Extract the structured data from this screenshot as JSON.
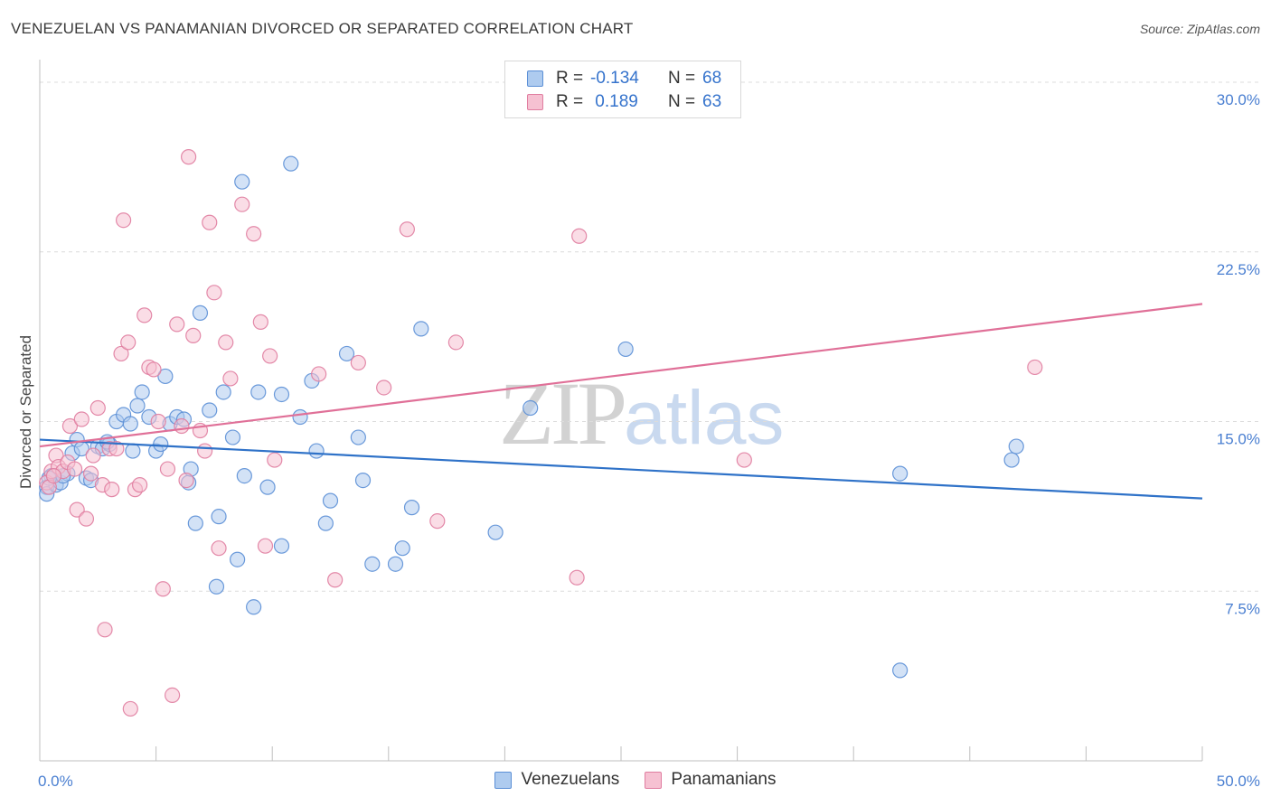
{
  "header": {
    "title": "VENEZUELAN VS PANAMANIAN DIVORCED OR SEPARATED CORRELATION CHART",
    "source": "Source: ZipAtlas.com"
  },
  "watermark": {
    "zip": "ZIP",
    "atlas": "atlas"
  },
  "legend": {
    "rows": [
      {
        "r_label": "R =",
        "r_value": "-0.134",
        "n_label": "N =",
        "n_value": "68",
        "color": "#5b8fd6",
        "fill": "#aecbef"
      },
      {
        "r_label": "R =",
        "r_value": " 0.189",
        "n_label": "N =",
        "n_value": "63",
        "color": "#e07da0",
        "fill": "#f6c1d2"
      }
    ]
  },
  "bottom_legend": {
    "items": [
      "Venezuelans",
      "Panamanians"
    ]
  },
  "colors": {
    "venezuelan_stroke": "#5b8fd6",
    "venezuelan_fill": "#aecbef",
    "venezuelan_line": "#2f72c8",
    "panamanian_stroke": "#e07da0",
    "panamanian_fill": "#f6c1d2",
    "panamanian_line": "#e07098",
    "tick_label": "#4a7fd1",
    "grid": "#dcdcdc"
  },
  "chart_data": {
    "type": "scatter",
    "title": "VENEZUELAN VS PANAMANIAN DIVORCED OR SEPARATED CORRELATION CHART",
    "xlabel": "",
    "ylabel": "Divorced or Separated",
    "xlim": [
      0,
      50
    ],
    "ylim": [
      0,
      31
    ],
    "x_tick_labels": [
      "0.0%",
      "50.0%"
    ],
    "y_ticks": [
      7.5,
      15.0,
      22.5,
      30.0
    ],
    "y_tick_labels": [
      "7.5%",
      "15.0%",
      "22.5%",
      "30.0%"
    ],
    "grid": true,
    "legend_position": "top-center",
    "series": [
      {
        "name": "Venezuelans",
        "r": -0.134,
        "n": 68,
        "trend": {
          "x": [
            0,
            50
          ],
          "y": [
            14.2,
            11.6
          ]
        },
        "points": [
          [
            0.3,
            12.1
          ],
          [
            0.3,
            11.8
          ],
          [
            0.5,
            12.6
          ],
          [
            0.7,
            12.2
          ],
          [
            0.9,
            12.3
          ],
          [
            1.2,
            12.7
          ],
          [
            1.4,
            13.6
          ],
          [
            1.6,
            14.2
          ],
          [
            1.8,
            13.8
          ],
          [
            2.0,
            12.5
          ],
          [
            2.2,
            12.4
          ],
          [
            2.5,
            13.9
          ],
          [
            2.7,
            13.8
          ],
          [
            3.0,
            14.0
          ],
          [
            3.3,
            15.0
          ],
          [
            3.6,
            15.3
          ],
          [
            3.9,
            14.9
          ],
          [
            4.0,
            13.7
          ],
          [
            4.2,
            15.7
          ],
          [
            4.4,
            16.3
          ],
          [
            4.7,
            15.2
          ],
          [
            5.0,
            13.7
          ],
          [
            5.2,
            14.0
          ],
          [
            5.4,
            17.0
          ],
          [
            5.6,
            14.9
          ],
          [
            5.9,
            15.2
          ],
          [
            6.2,
            15.1
          ],
          [
            6.4,
            12.3
          ],
          [
            6.5,
            12.9
          ],
          [
            6.7,
            10.5
          ],
          [
            6.9,
            19.8
          ],
          [
            7.3,
            15.5
          ],
          [
            7.6,
            7.7
          ],
          [
            7.7,
            10.8
          ],
          [
            7.9,
            16.3
          ],
          [
            8.3,
            14.3
          ],
          [
            8.5,
            8.9
          ],
          [
            8.7,
            25.6
          ],
          [
            8.8,
            12.6
          ],
          [
            9.2,
            6.8
          ],
          [
            9.4,
            16.3
          ],
          [
            9.8,
            12.1
          ],
          [
            10.4,
            16.2
          ],
          [
            10.4,
            9.5
          ],
          [
            10.8,
            26.4
          ],
          [
            11.2,
            15.2
          ],
          [
            11.7,
            16.8
          ],
          [
            11.9,
            13.7
          ],
          [
            12.3,
            10.5
          ],
          [
            12.5,
            11.5
          ],
          [
            13.2,
            18.0
          ],
          [
            13.7,
            14.3
          ],
          [
            13.9,
            12.4
          ],
          [
            14.3,
            8.7
          ],
          [
            15.3,
            8.7
          ],
          [
            15.6,
            9.4
          ],
          [
            16.0,
            11.2
          ],
          [
            16.4,
            19.1
          ],
          [
            19.6,
            10.1
          ],
          [
            21.1,
            15.6
          ],
          [
            25.2,
            18.2
          ],
          [
            37.0,
            12.7
          ],
          [
            37.0,
            4.0
          ],
          [
            41.8,
            13.3
          ],
          [
            42.0,
            13.9
          ],
          [
            0.4,
            12.5
          ],
          [
            1.0,
            12.6
          ],
          [
            2.9,
            14.1
          ]
        ]
      },
      {
        "name": "Panamanians",
        "r": 0.189,
        "n": 63,
        "trend": {
          "x": [
            0,
            50
          ],
          "y": [
            13.9,
            20.2
          ]
        },
        "points": [
          [
            0.3,
            12.3
          ],
          [
            0.5,
            12.8
          ],
          [
            0.7,
            13.5
          ],
          [
            0.8,
            13.0
          ],
          [
            1.0,
            12.8
          ],
          [
            1.3,
            14.8
          ],
          [
            1.6,
            11.1
          ],
          [
            1.8,
            15.1
          ],
          [
            2.0,
            10.7
          ],
          [
            2.3,
            13.5
          ],
          [
            2.5,
            15.6
          ],
          [
            2.7,
            12.2
          ],
          [
            2.8,
            5.8
          ],
          [
            3.0,
            13.8
          ],
          [
            3.1,
            12.0
          ],
          [
            3.3,
            13.8
          ],
          [
            3.5,
            18.0
          ],
          [
            3.6,
            23.9
          ],
          [
            3.8,
            18.5
          ],
          [
            3.9,
            2.3
          ],
          [
            4.1,
            12.0
          ],
          [
            4.3,
            12.2
          ],
          [
            4.5,
            19.7
          ],
          [
            4.7,
            17.4
          ],
          [
            4.9,
            17.3
          ],
          [
            5.1,
            15.0
          ],
          [
            5.3,
            7.6
          ],
          [
            5.5,
            12.9
          ],
          [
            5.7,
            2.9
          ],
          [
            5.9,
            19.3
          ],
          [
            6.1,
            14.8
          ],
          [
            6.3,
            12.4
          ],
          [
            6.4,
            26.7
          ],
          [
            6.6,
            18.8
          ],
          [
            6.9,
            14.6
          ],
          [
            7.1,
            13.7
          ],
          [
            7.3,
            23.8
          ],
          [
            7.5,
            20.7
          ],
          [
            7.7,
            9.4
          ],
          [
            8.0,
            18.5
          ],
          [
            8.2,
            16.9
          ],
          [
            8.7,
            24.6
          ],
          [
            9.2,
            23.3
          ],
          [
            9.5,
            19.4
          ],
          [
            9.7,
            9.5
          ],
          [
            9.9,
            17.9
          ],
          [
            10.1,
            13.3
          ],
          [
            12.0,
            17.1
          ],
          [
            12.7,
            8.0
          ],
          [
            13.7,
            17.6
          ],
          [
            14.8,
            16.5
          ],
          [
            15.8,
            23.5
          ],
          [
            17.1,
            10.6
          ],
          [
            17.9,
            18.5
          ],
          [
            23.1,
            8.1
          ],
          [
            23.2,
            23.2
          ],
          [
            30.3,
            13.3
          ],
          [
            42.8,
            17.4
          ],
          [
            0.4,
            12.1
          ],
          [
            1.2,
            13.2
          ],
          [
            2.2,
            12.7
          ],
          [
            0.6,
            12.6
          ],
          [
            1.5,
            12.9
          ]
        ]
      }
    ]
  }
}
